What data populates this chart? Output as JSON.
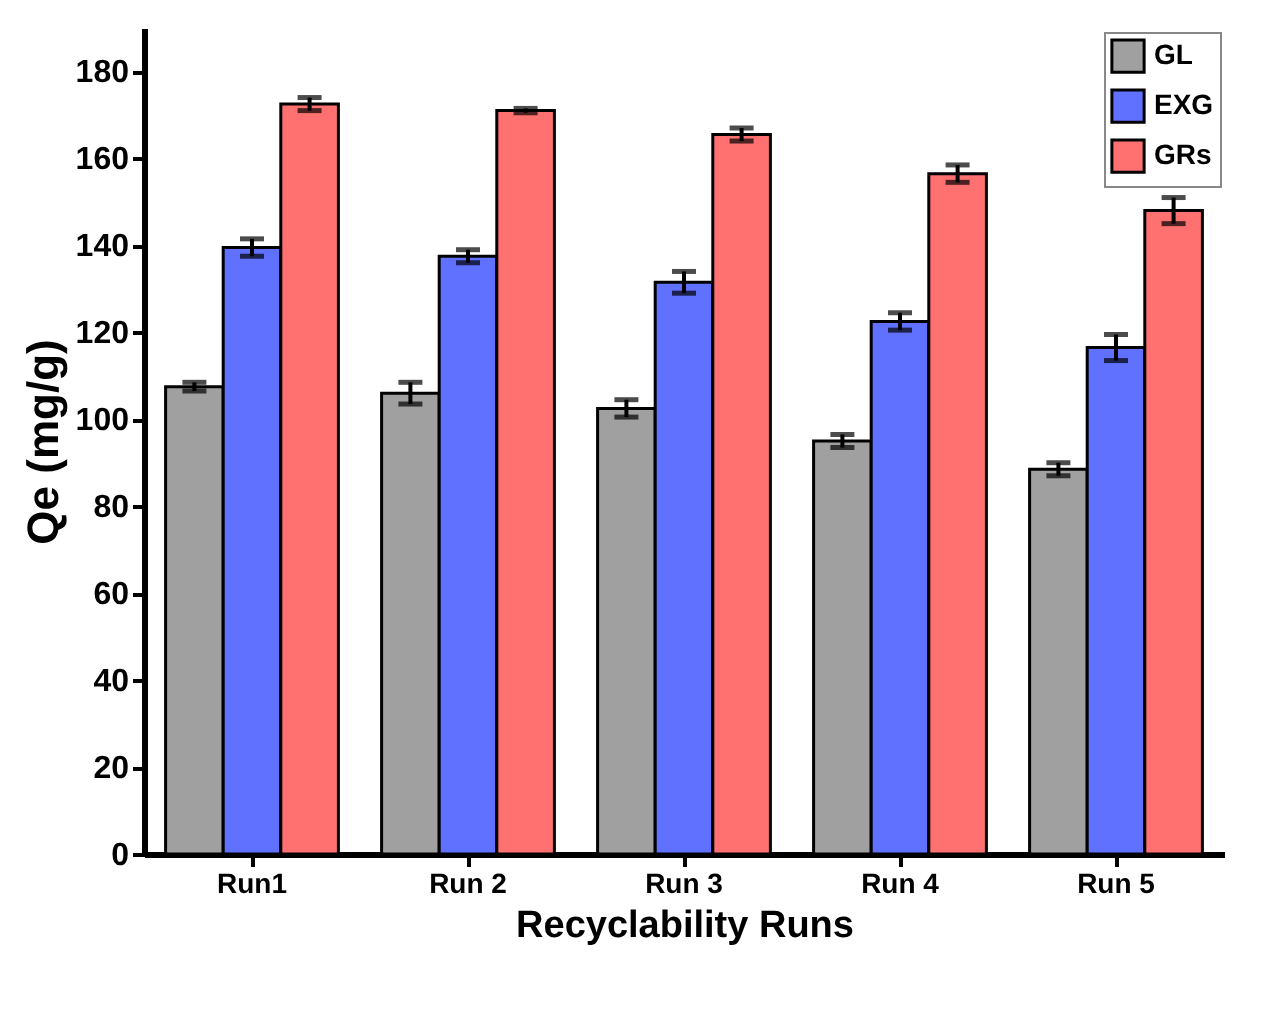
{
  "chart_data": {
    "type": "bar",
    "xlabel": "Recyclability Runs",
    "ylabel": "Qe (mg/g)",
    "categories": [
      "Run1",
      "Run 2",
      "Run 3",
      "Run 4",
      "Run 5"
    ],
    "series": [
      {
        "name": "GL",
        "color": "#a0a0a0",
        "values": [
          107.5,
          106,
          102.5,
          95,
          88.5
        ],
        "errors": [
          1,
          2.5,
          2,
          1.5,
          1.5
        ]
      },
      {
        "name": "EXG",
        "color": "#6070ff",
        "values": [
          139.5,
          137.5,
          131.5,
          122.5,
          116.5
        ],
        "errors": [
          2,
          1.5,
          2.5,
          2,
          3
        ]
      },
      {
        "name": "GRs",
        "color": "#ff7070",
        "values": [
          172.5,
          171,
          165.5,
          156.5,
          148
        ],
        "errors": [
          1.5,
          0.5,
          1.5,
          2,
          3
        ]
      }
    ],
    "ylim": [
      0,
      190
    ],
    "yticks": [
      0,
      20,
      40,
      60,
      80,
      100,
      120,
      140,
      160,
      180
    ],
    "grid": false,
    "legend": "top right"
  }
}
